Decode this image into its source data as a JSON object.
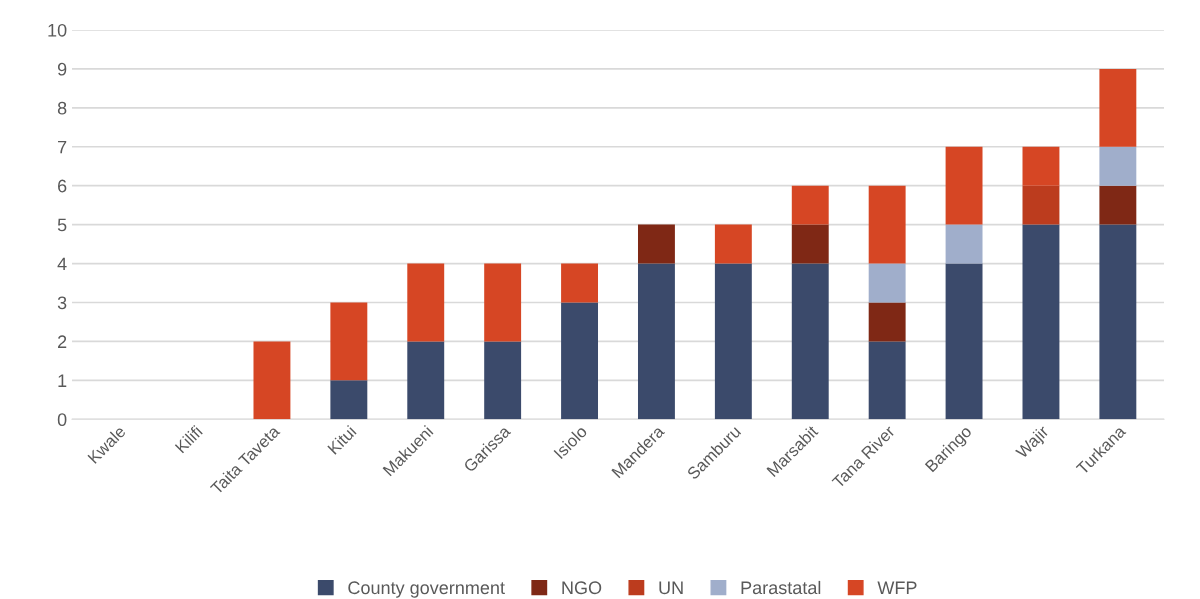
{
  "chart_data": {
    "type": "bar",
    "stacked": true,
    "categories": [
      "Kwale",
      "Kilifi",
      "Taita Taveta",
      "Kitui",
      "Makueni",
      "Garissa",
      "Isiolo",
      "Mandera",
      "Samburu",
      "Marsabit",
      "Tana River",
      "Baringo",
      "Wajir",
      "Turkana"
    ],
    "series": [
      {
        "name": "County government",
        "color": "#3b4a6b",
        "values": [
          0,
          0,
          0,
          1,
          2,
          2,
          3,
          4,
          4,
          4,
          2,
          4,
          5,
          5
        ]
      },
      {
        "name": "NGO",
        "color": "#7f2815",
        "values": [
          0,
          0,
          0,
          0,
          0,
          0,
          0,
          1,
          0,
          1,
          1,
          0,
          0,
          1
        ]
      },
      {
        "name": "UN",
        "color": "#bc3c1e",
        "values": [
          0,
          0,
          0,
          0,
          0,
          0,
          0,
          0,
          0,
          0,
          0,
          0,
          1,
          0
        ]
      },
      {
        "name": "Parastatal",
        "color": "#a0aecb",
        "values": [
          0,
          0,
          0,
          0,
          0,
          0,
          0,
          0,
          0,
          0,
          1,
          1,
          0,
          1
        ]
      },
      {
        "name": "WFP",
        "color": "#d64624",
        "values": [
          0,
          0,
          2,
          2,
          2,
          2,
          1,
          0,
          1,
          1,
          2,
          2,
          1,
          2
        ]
      }
    ],
    "ylim": [
      0,
      10
    ],
    "yticks": [
      0,
      1,
      2,
      3,
      4,
      5,
      6,
      7,
      8,
      9,
      10
    ],
    "grid": "y",
    "legend": "bottom"
  }
}
